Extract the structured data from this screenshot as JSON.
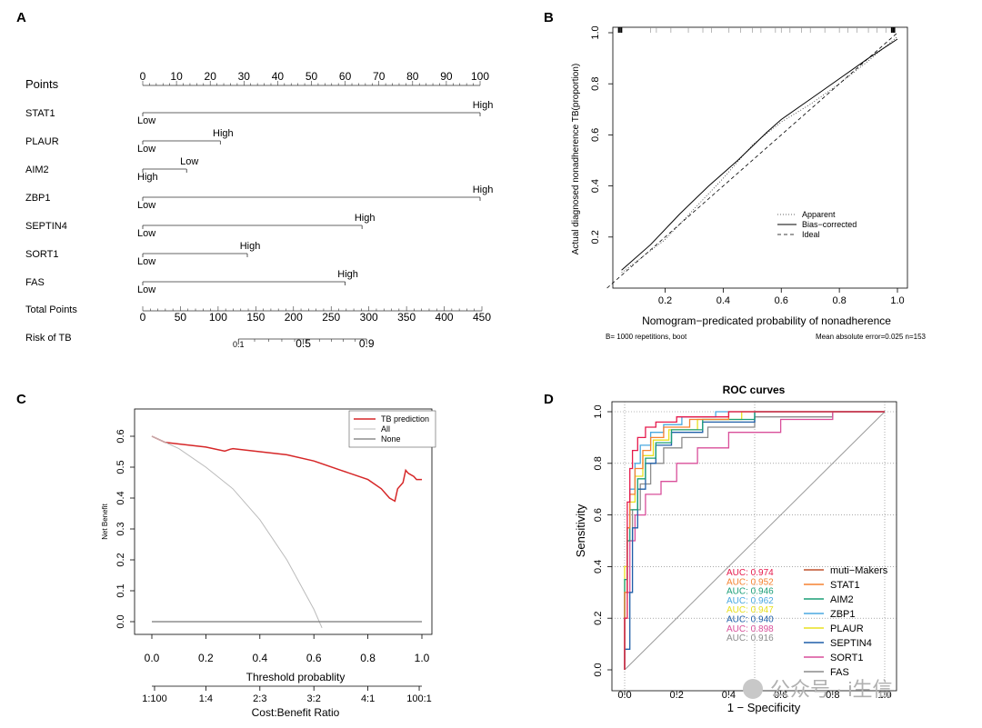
{
  "panels": {
    "A": {
      "letter": "A",
      "points_label": "Points",
      "points_ticks": [
        "0",
        "10",
        "20",
        "30",
        "40",
        "50",
        "60",
        "70",
        "80",
        "90",
        "100"
      ],
      "rows": [
        {
          "name": "STAT1",
          "low": "Low",
          "high": "High",
          "points": 100
        },
        {
          "name": "PLAUR",
          "low": "Low",
          "high": "High",
          "points": 23
        },
        {
          "name": "AIM2",
          "low": "High",
          "high": "Low",
          "points": 13
        },
        {
          "name": "ZBP1",
          "low": "Low",
          "high": "High",
          "points": 100
        },
        {
          "name": "SEPTIN4",
          "low": "Low",
          "high": "High",
          "points": 65
        },
        {
          "name": "SORT1",
          "low": "Low",
          "high": "High",
          "points": 31
        },
        {
          "name": "FAS",
          "low": "Low",
          "high": "High",
          "points": 60
        }
      ],
      "total_label": "Total Points",
      "total_ticks": [
        "0",
        "50",
        "100",
        "150",
        "200",
        "250",
        "300",
        "350",
        "400",
        "450"
      ],
      "risk_label": "Risk of TB",
      "risk_ticks": [
        {
          "label": "0.1",
          "total": 127
        },
        {
          "label": "0.5",
          "total": 213
        },
        {
          "label": "0.9",
          "total": 297
        }
      ]
    },
    "B": {
      "letter": "B",
      "ylabel": "Actual diagnosed nonadherence TB(proportion)",
      "xlabel": "Nomogram−predicated probability of nonadherence",
      "yticks": [
        "0.2",
        "0.4",
        "0.6",
        "0.8",
        "1.0"
      ],
      "xticks": [
        "0.2",
        "0.4",
        "0.6",
        "0.8",
        "1.0"
      ],
      "legend": [
        "Apparent",
        "Bias−corrected",
        "Ideal"
      ],
      "footer_left": "B= 1000 repetitions, boot",
      "footer_right": "Mean absolute error=0.025 n=153"
    },
    "C": {
      "letter": "C",
      "ylabel": "Net Benefit",
      "xlabel": "Threshold probablity",
      "xlabel2": "Cost:Benefit Ratio",
      "yticks": [
        "0.0",
        "0.1",
        "0.2",
        "0.3",
        "0.4",
        "0.5",
        "0.6"
      ],
      "xticks": [
        "0.0",
        "0.2",
        "0.4",
        "0.6",
        "0.8",
        "1.0"
      ],
      "ratio_ticks": [
        "1:100",
        "1:4",
        "2:3",
        "3:2",
        "4:1",
        "100:1"
      ],
      "legend": [
        "TB prediction",
        "All",
        "None"
      ]
    },
    "D": {
      "letter": "D",
      "title": "ROC curves",
      "ylabel": "Sensitivity",
      "xlabel": "1 − Specificity",
      "ticks": [
        "0.0",
        "0.2",
        "0.4",
        "0.6",
        "0.8",
        "1.0"
      ],
      "auc": [
        {
          "text": "AUC: 0.974",
          "color": "#e6194b"
        },
        {
          "text": "AUC: 0.952",
          "color": "#f58231"
        },
        {
          "text": "AUC: 0.946",
          "color": "#1a9e77"
        },
        {
          "text": "AUC: 0.962",
          "color": "#4aa8e0"
        },
        {
          "text": "AUC: 0.947",
          "color": "#e8e020"
        },
        {
          "text": "AUC: 0.940",
          "color": "#1f5fa8"
        },
        {
          "text": "AUC: 0.898",
          "color": "#d94f9a"
        },
        {
          "text": "AUC: 0.916",
          "color": "#8c8c8c"
        }
      ],
      "legend": [
        {
          "name": "muti−Makers",
          "color": "#c0522e"
        },
        {
          "name": "STAT1",
          "color": "#f58231"
        },
        {
          "name": "AIM2",
          "color": "#1a9e77"
        },
        {
          "name": "ZBP1",
          "color": "#4aa8e0"
        },
        {
          "name": "PLAUR",
          "color": "#e8e020"
        },
        {
          "name": "SEPTIN4",
          "color": "#1f5fa8"
        },
        {
          "name": "SORT1",
          "color": "#d94f9a"
        },
        {
          "name": "FAS",
          "color": "#8c8c8c"
        }
      ]
    }
  },
  "watermark": "公众号 · i生信",
  "chart_data": [
    {
      "type": "nomogram",
      "points_range": [
        0,
        100
      ],
      "total_points_range": [
        0,
        450
      ],
      "variables": [
        {
          "name": "STAT1",
          "points_high": 100
        },
        {
          "name": "PLAUR",
          "points_high": 23
        },
        {
          "name": "AIM2",
          "points_low": 13
        },
        {
          "name": "ZBP1",
          "points_high": 100
        },
        {
          "name": "SEPTIN4",
          "points_high": 65
        },
        {
          "name": "SORT1",
          "points_high": 31
        },
        {
          "name": "FAS",
          "points_high": 60
        }
      ],
      "risk_scale": {
        "0.1": 127,
        "0.5": 213,
        "0.9": 297
      }
    },
    {
      "type": "line",
      "title": "",
      "xlabel": "Nomogram−predicated probability of nonadherence",
      "ylabel": "Actual diagnosed nonadherence TB(proportion)",
      "xlim": [
        0.0,
        1.03
      ],
      "ylim": [
        0.0,
        1.03
      ],
      "series": [
        {
          "name": "Apparent",
          "x": [
            0.05,
            0.2,
            0.3,
            0.4,
            0.5,
            0.6,
            0.7,
            0.8,
            0.9,
            1.0
          ],
          "y": [
            0.06,
            0.19,
            0.31,
            0.43,
            0.56,
            0.65,
            0.72,
            0.8,
            0.89,
            0.985
          ]
        },
        {
          "name": "Bias−corrected",
          "x": [
            0.05,
            0.15,
            0.25,
            0.35,
            0.45,
            0.55,
            0.6,
            0.7,
            0.8,
            0.9,
            1.0
          ],
          "y": [
            0.07,
            0.17,
            0.29,
            0.4,
            0.5,
            0.61,
            0.66,
            0.74,
            0.82,
            0.9,
            0.975
          ]
        },
        {
          "name": "Ideal",
          "x": [
            0.0,
            1.0
          ],
          "y": [
            0.0,
            1.0
          ]
        }
      ]
    },
    {
      "type": "line",
      "xlabel": "Threshold probablity",
      "ylabel": "Net Benefit",
      "xlim": [
        0.0,
        1.0
      ],
      "ylim": [
        -0.02,
        0.62
      ],
      "series": [
        {
          "name": "TB prediction",
          "x": [
            0.0,
            0.05,
            0.1,
            0.2,
            0.27,
            0.29,
            0.3,
            0.4,
            0.5,
            0.6,
            0.7,
            0.8,
            0.85,
            0.88,
            0.9,
            0.91,
            0.93,
            0.94,
            0.95,
            0.97,
            0.98,
            1.0
          ],
          "y": [
            0.6,
            0.58,
            0.575,
            0.565,
            0.552,
            0.558,
            0.56,
            0.55,
            0.54,
            0.52,
            0.49,
            0.46,
            0.43,
            0.4,
            0.39,
            0.43,
            0.45,
            0.49,
            0.48,
            0.47,
            0.46,
            0.46
          ]
        },
        {
          "name": "All",
          "x": [
            0.0,
            0.1,
            0.2,
            0.3,
            0.4,
            0.5,
            0.55,
            0.6,
            0.63
          ],
          "y": [
            0.6,
            0.56,
            0.5,
            0.43,
            0.33,
            0.2,
            0.12,
            0.04,
            -0.02
          ]
        },
        {
          "name": "None",
          "x": [
            0.0,
            1.0
          ],
          "y": [
            0.0,
            0.0
          ]
        }
      ]
    },
    {
      "type": "line",
      "title": "ROC curves",
      "xlabel": "1 − Specificity",
      "ylabel": "Sensitivity",
      "xlim": [
        0.0,
        1.0
      ],
      "ylim": [
        0.0,
        1.0
      ],
      "series": [
        {
          "name": "muti−Makers",
          "auc": 0.974,
          "x": [
            0,
            0,
            0.01,
            0.01,
            0.02,
            0.03,
            0.05,
            0.08,
            0.12,
            0.2,
            0.4,
            1.0
          ],
          "y": [
            0,
            0.2,
            0.45,
            0.65,
            0.78,
            0.85,
            0.9,
            0.94,
            0.96,
            0.98,
            1.0,
            1.0
          ]
        },
        {
          "name": "STAT1",
          "auc": 0.952,
          "x": [
            0,
            0,
            0.01,
            0.02,
            0.04,
            0.07,
            0.1,
            0.15,
            0.25,
            0.4,
            1.0
          ],
          "y": [
            0,
            0.3,
            0.55,
            0.68,
            0.78,
            0.85,
            0.9,
            0.94,
            0.97,
            1.0,
            1.0
          ]
        },
        {
          "name": "AIM2",
          "auc": 0.946,
          "x": [
            0,
            0,
            0.01,
            0.02,
            0.05,
            0.08,
            0.12,
            0.18,
            0.3,
            0.5,
            1.0
          ],
          "y": [
            0,
            0.35,
            0.5,
            0.62,
            0.74,
            0.82,
            0.88,
            0.93,
            0.97,
            1.0,
            1.0
          ]
        },
        {
          "name": "ZBP1",
          "auc": 0.962,
          "x": [
            0,
            0,
            0.01,
            0.02,
            0.04,
            0.06,
            0.1,
            0.15,
            0.22,
            0.35,
            1.0
          ],
          "y": [
            0,
            0.3,
            0.55,
            0.7,
            0.8,
            0.87,
            0.92,
            0.95,
            0.98,
            1.0,
            1.0
          ]
        },
        {
          "name": "PLAUR",
          "auc": 0.947,
          "x": [
            0,
            0,
            0.01,
            0.02,
            0.04,
            0.07,
            0.11,
            0.17,
            0.28,
            0.45,
            1.0
          ],
          "y": [
            0,
            0.4,
            0.55,
            0.65,
            0.75,
            0.83,
            0.89,
            0.93,
            0.97,
            1.0,
            1.0
          ]
        },
        {
          "name": "SEPTIN4",
          "auc": 0.94,
          "x": [
            0,
            0,
            0.02,
            0.03,
            0.05,
            0.08,
            0.12,
            0.18,
            0.3,
            0.5,
            1.0
          ],
          "y": [
            0,
            0.08,
            0.3,
            0.55,
            0.7,
            0.8,
            0.87,
            0.92,
            0.96,
            1.0,
            1.0
          ]
        },
        {
          "name": "SORT1",
          "auc": 0.898,
          "x": [
            0,
            0,
            0.02,
            0.04,
            0.08,
            0.14,
            0.2,
            0.28,
            0.4,
            0.6,
            0.8,
            1.0
          ],
          "y": [
            0,
            0.3,
            0.5,
            0.6,
            0.68,
            0.73,
            0.8,
            0.86,
            0.92,
            0.97,
            1.0,
            1.0
          ]
        },
        {
          "name": "FAS",
          "auc": 0.916,
          "x": [
            0,
            0,
            0.01,
            0.03,
            0.06,
            0.1,
            0.15,
            0.22,
            0.32,
            0.5,
            0.8,
            1.0
          ],
          "y": [
            0,
            0.3,
            0.5,
            0.62,
            0.72,
            0.8,
            0.86,
            0.9,
            0.94,
            0.98,
            1.0,
            1.0
          ]
        }
      ]
    }
  ]
}
